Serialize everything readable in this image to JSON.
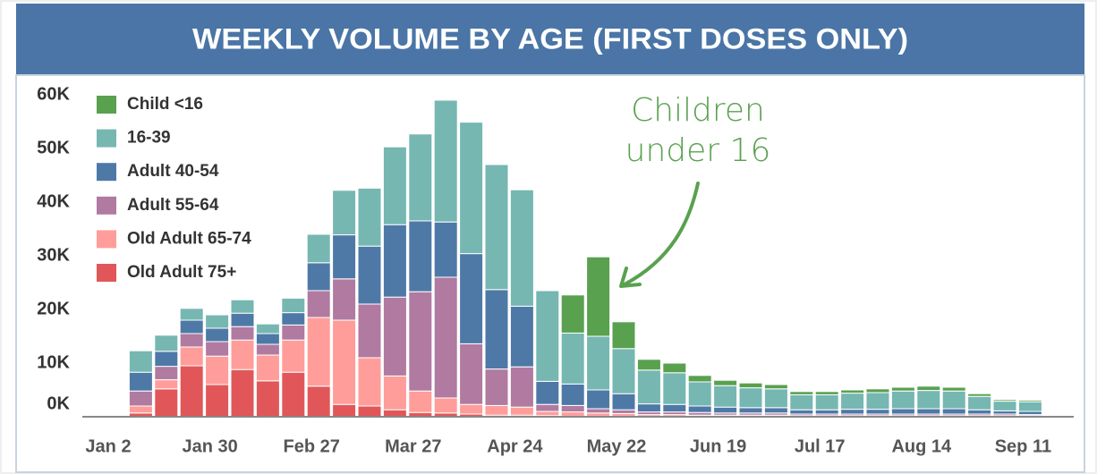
{
  "chart_data": {
    "type": "stacked_bar",
    "title": "WEEKLY VOLUME BY AGE (FIRST DOSES ONLY)",
    "annotation": [
      "Children",
      "under 16"
    ],
    "categories": [
      "Jan 2",
      null,
      null,
      null,
      "Jan 30",
      null,
      null,
      null,
      "Feb 27",
      null,
      null,
      null,
      "Mar 27",
      null,
      null,
      null,
      "Apr 24",
      null,
      null,
      null,
      "May 22",
      null,
      null,
      null,
      "Jun 19",
      null,
      null,
      null,
      "Jul 17",
      null,
      null,
      null,
      "Aug 14",
      null,
      null,
      null,
      "Sep 11"
    ],
    "series": [
      {
        "name": "Child <16",
        "color": "#59a14f",
        "values": [
          null,
          0,
          0,
          0,
          0,
          0,
          0,
          0,
          0,
          0,
          0,
          0,
          0,
          0,
          0,
          0,
          0,
          0,
          7100,
          14800,
          5000,
          2000,
          1800,
          1200,
          1000,
          900,
          800,
          600,
          600,
          600,
          700,
          700,
          800,
          700,
          500,
          300,
          300
        ]
      },
      {
        "name": "16-39",
        "color": "#76b7b2",
        "values": [
          null,
          4000,
          3000,
          2200,
          2500,
          2500,
          1800,
          2700,
          5300,
          8300,
          10800,
          14500,
          16200,
          22700,
          24500,
          23300,
          21700,
          16900,
          9500,
          10000,
          8400,
          6300,
          5900,
          4500,
          4000,
          3700,
          3500,
          2800,
          2800,
          3000,
          3100,
          3300,
          3400,
          3300,
          2500,
          1800,
          1800
        ]
      },
      {
        "name": "Adult 40-54",
        "color": "#4e79a7",
        "values": [
          null,
          3500,
          2800,
          2500,
          2500,
          2500,
          2000,
          2300,
          5200,
          8200,
          10800,
          13500,
          13200,
          10300,
          16800,
          14800,
          11300,
          4300,
          4000,
          3500,
          3000,
          1500,
          1400,
          1200,
          1100,
          1000,
          1000,
          800,
          800,
          900,
          900,
          1000,
          1000,
          1000,
          800,
          600,
          600
        ]
      },
      {
        "name": "Adult 55-64",
        "color": "#b07aa1",
        "values": [
          null,
          2800,
          2500,
          2500,
          2700,
          2500,
          2000,
          2800,
          5000,
          7700,
          10000,
          14700,
          18500,
          22500,
          11300,
          6800,
          7500,
          1300,
          1200,
          800,
          700,
          500,
          500,
          500,
          400,
          400,
          400,
          300,
          300,
          300,
          300,
          300,
          300,
          300,
          300,
          300,
          200
        ]
      },
      {
        "name": "Old Adult 65-74",
        "color": "#ff9d9a",
        "values": [
          null,
          1300,
          1700,
          3500,
          5300,
          5500,
          4800,
          6000,
          12800,
          15700,
          9000,
          6300,
          4000,
          2800,
          1800,
          1800,
          1500,
          800,
          800,
          600,
          500,
          300,
          300,
          200,
          200,
          200,
          200,
          100,
          100,
          100,
          100,
          100,
          100,
          100,
          100,
          100,
          100
        ]
      },
      {
        "name": "Old Adult 75+",
        "color": "#e15759",
        "values": [
          null,
          700,
          5200,
          9500,
          6000,
          8800,
          6700,
          8300,
          5700,
          2300,
          2000,
          1300,
          800,
          700,
          500,
          300,
          300,
          200,
          100,
          100,
          100,
          100,
          100,
          100,
          100,
          100,
          100,
          100,
          100,
          100,
          100,
          100,
          100,
          100,
          100,
          100,
          100
        ]
      }
    ],
    "ylim": [
      0,
      62000
    ],
    "yticks": [
      {
        "value": 0,
        "label": "0K"
      },
      {
        "value": 10000,
        "label": "10K"
      },
      {
        "value": 20000,
        "label": "20K"
      },
      {
        "value": 30000,
        "label": "30K"
      },
      {
        "value": 40000,
        "label": "40K"
      },
      {
        "value": 50000,
        "label": "50K"
      },
      {
        "value": 60000,
        "label": "60K"
      }
    ],
    "legend": "top-left"
  }
}
